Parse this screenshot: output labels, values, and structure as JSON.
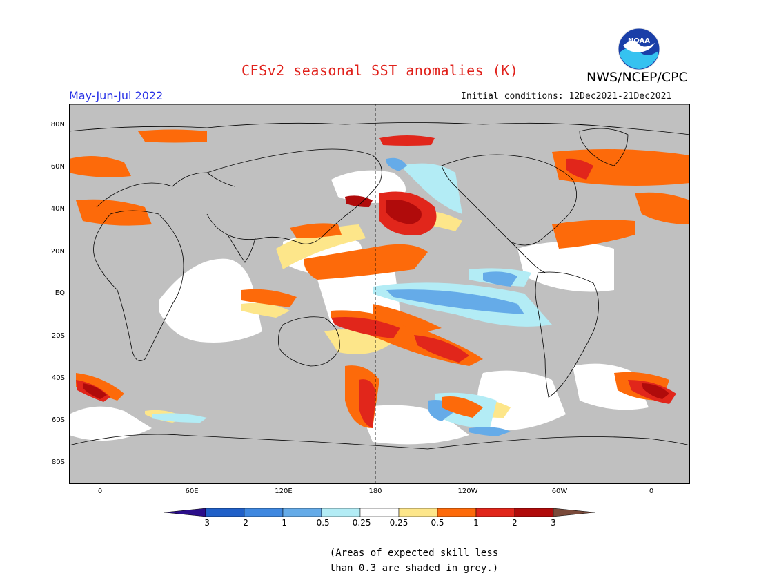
{
  "header": {
    "title": "CFSv2 seasonal SST anomalies (K)",
    "org": "NWS/NCEP/CPC",
    "logo_text": "NOAA",
    "season": "May-Jun-Jul 2022",
    "initial": "Initial conditions: 12Dec2021-21Dec2021"
  },
  "axes": {
    "lat_labels": [
      "80N",
      "60N",
      "40N",
      "20N",
      "EQ",
      "20S",
      "40S",
      "60S",
      "80S"
    ],
    "lon_labels": [
      "0",
      "60E",
      "120E",
      "180",
      "120W",
      "60W",
      "0"
    ]
  },
  "colorbar": {
    "labels": [
      "-3",
      "-2",
      "-1",
      "-0.5",
      "-0.25",
      "0.25",
      "0.5",
      "1",
      "2",
      "3"
    ],
    "colors": [
      "#2b0e8a",
      "#2060c8",
      "#3f88e0",
      "#65abe8",
      "#b3ecf5",
      "#ffffff",
      "#fde68a",
      "#fd6a0a",
      "#e1261b",
      "#b00b0b",
      "#7a4a3a"
    ]
  },
  "note": {
    "line1": "(Areas of expected skill less",
    "line2": "than 0.3 are shaded in grey.)"
  },
  "colors": {
    "grey": "#c0c0c0",
    "title": "#e0211b",
    "season": "#2a33e6"
  }
}
